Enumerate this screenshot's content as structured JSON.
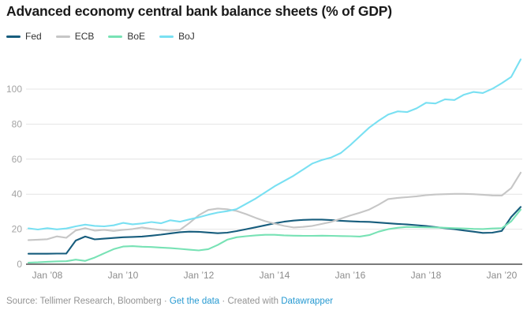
{
  "title": "Advanced economy central bank balance sheets (% of GDP)",
  "footer": {
    "source_text": "Source: Tellimer Research, Bloomberg",
    "separator": "·",
    "get_data_link": "Get the data",
    "created_with_text": "Created with",
    "datawrapper_link": "Datawrapper",
    "link_color": "#279ad2",
    "text_color": "#939393"
  },
  "colors": {
    "fed": "#175d7d",
    "ecb": "#c6c6c6",
    "boe": "#78e2b5",
    "boj": "#79e0f2",
    "gridline": "#e4e4e4",
    "baseline": "#2b2b2b",
    "y_tick_label": "#a3a3a3",
    "x_tick_label": "#8c8c8c"
  },
  "chart_data": {
    "type": "line",
    "title": "Advanced economy central bank balance sheets (% of GDP)",
    "xlabel": "",
    "ylabel": "% of GDP",
    "xlim": [
      2007.5,
      2020.5
    ],
    "ylim": [
      0,
      120
    ],
    "grid": true,
    "legend_position": "top",
    "y_ticks": [
      0,
      20,
      40,
      60,
      80,
      100
    ],
    "x_ticks": [
      {
        "value": 2008,
        "label": "Jan ’08"
      },
      {
        "value": 2010,
        "label": "Jan ’10"
      },
      {
        "value": 2012,
        "label": "Jan ’12"
      },
      {
        "value": 2014,
        "label": "Jan ’14"
      },
      {
        "value": 2016,
        "label": "Jan ’16"
      },
      {
        "value": 2018,
        "label": "Jan ’18"
      },
      {
        "value": 2020,
        "label": "Jan ’20"
      }
    ],
    "x": [
      2007.5,
      2007.75,
      2008,
      2008.25,
      2008.5,
      2008.75,
      2009,
      2009.25,
      2009.5,
      2009.75,
      2010,
      2010.25,
      2010.5,
      2010.75,
      2011,
      2011.25,
      2011.5,
      2011.75,
      2012,
      2012.25,
      2012.5,
      2012.75,
      2013,
      2013.25,
      2013.5,
      2013.75,
      2014,
      2014.25,
      2014.5,
      2014.75,
      2015,
      2015.25,
      2015.5,
      2015.75,
      2016,
      2016.25,
      2016.5,
      2016.75,
      2017,
      2017.25,
      2017.5,
      2017.75,
      2018,
      2018.25,
      2018.5,
      2018.75,
      2019,
      2019.25,
      2019.5,
      2019.75,
      2020,
      2020.25,
      2020.5
    ],
    "series": [
      {
        "name": "Fed",
        "color_key": "fed",
        "values": [
          6,
          6,
          6,
          6.1,
          6.1,
          13.5,
          15.8,
          14.2,
          14.6,
          15,
          15.4,
          15.6,
          15.8,
          16.3,
          16.9,
          17.6,
          18.3,
          18.6,
          18.5,
          18.1,
          17.7,
          18,
          18.9,
          20,
          21.1,
          22.2,
          23.4,
          24.3,
          24.9,
          25.3,
          25.5,
          25.5,
          25.2,
          24.8,
          24.5,
          24.3,
          24.2,
          23.8,
          23.4,
          23,
          22.7,
          22.3,
          21.8,
          21.2,
          20.6,
          20,
          19.3,
          18.6,
          17.9,
          18,
          19,
          27,
          32.7
        ]
      },
      {
        "name": "ECB",
        "color_key": "ecb",
        "values": [
          13.8,
          14,
          14.3,
          15.9,
          15.1,
          19.3,
          20.6,
          19.2,
          19.6,
          19,
          19.6,
          20.1,
          21,
          20.2,
          19.6,
          19.1,
          19.6,
          23.5,
          28,
          31,
          31.8,
          31.4,
          30.4,
          28.6,
          26.5,
          24.6,
          23.2,
          21.9,
          21,
          21.3,
          21.9,
          23,
          24.2,
          26,
          27.8,
          29.4,
          31.2,
          34,
          37.2,
          37.9,
          38.3,
          38.8,
          39.4,
          39.8,
          40,
          40.2,
          40.2,
          40,
          39.7,
          39.3,
          39.2,
          43.5,
          52.3
        ]
      },
      {
        "name": "BoE",
        "color_key": "boe",
        "values": [
          0.9,
          1.1,
          1.4,
          1.6,
          1.7,
          2.6,
          1.9,
          3.8,
          6.2,
          8.6,
          10.1,
          10.3,
          10,
          9.8,
          9.5,
          9.2,
          8.8,
          8.3,
          7.9,
          8.6,
          11,
          14,
          15.4,
          16,
          16.5,
          16.8,
          16.8,
          16.5,
          16.3,
          16.2,
          16.2,
          16.3,
          16.2,
          16.1,
          16,
          15.8,
          16.6,
          18.6,
          20,
          20.8,
          21.3,
          21.2,
          21.1,
          21,
          20.8,
          20.6,
          20.4,
          20.2,
          20.1,
          20.4,
          20.6,
          24.5,
          31.2
        ]
      },
      {
        "name": "BoJ",
        "color_key": "boj",
        "values": [
          20.5,
          19.8,
          20.6,
          19.9,
          20.4,
          21.6,
          22.6,
          21.9,
          21.6,
          22.2,
          23.6,
          22.8,
          23.3,
          24.1,
          23.4,
          25.1,
          24.3,
          25.6,
          26.8,
          28.3,
          29.5,
          30.3,
          31.5,
          34.5,
          37.5,
          41,
          44.5,
          47.5,
          50.5,
          54,
          57.5,
          59.5,
          61,
          63.5,
          68,
          73,
          78,
          82,
          85.5,
          87.3,
          86.9,
          89,
          92.2,
          91.8,
          94.2,
          93.8,
          96.8,
          98.4,
          97.8,
          100.2,
          103.4,
          107,
          117
        ]
      }
    ]
  }
}
